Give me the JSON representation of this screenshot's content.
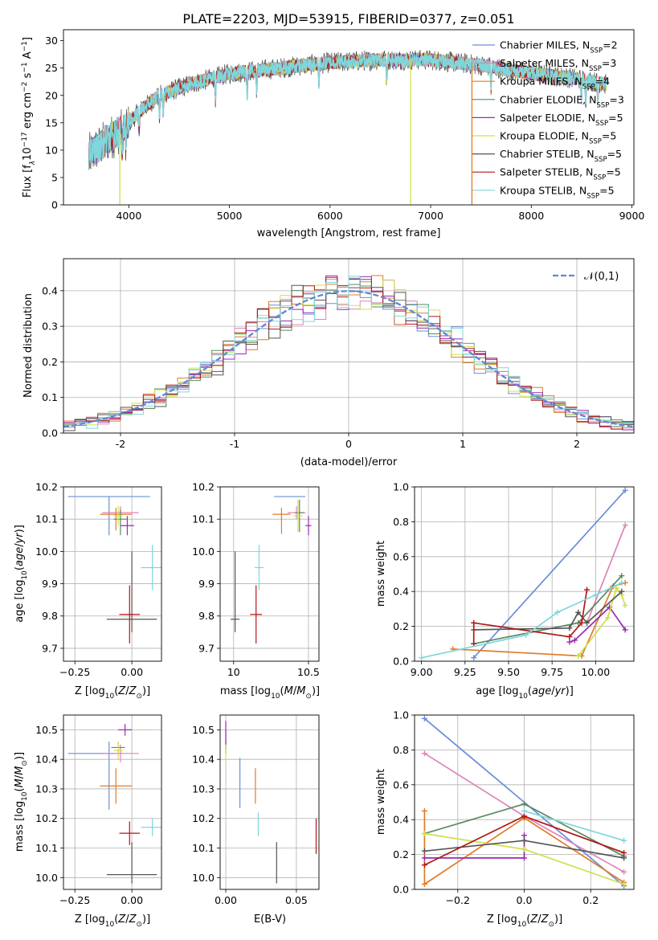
{
  "title": "PLATE=2203, MJD=53915, FIBERID=0377, z=0.051",
  "colors": [
    "#6b8dd6",
    "#e083b8",
    "#e07b2a",
    "#5a8a60",
    "#9a2bb0",
    "#cfe04a",
    "#555555",
    "#b01818",
    "#7fd6dc"
  ],
  "legend": [
    {
      "prefix": "Chabrier MILES, N",
      "sub": "SSP",
      "suffix": "=2"
    },
    {
      "prefix": "Salpeter MILES, N",
      "sub": "SSP",
      "suffix": "=3"
    },
    {
      "prefix": "Kroupa MILES, N",
      "sub": "SSP",
      "suffix": "=4"
    },
    {
      "prefix": "Chabrier ELODIE, N",
      "sub": "SSP",
      "suffix": "=3"
    },
    {
      "prefix": "Salpeter ELODIE, N",
      "sub": "SSP",
      "suffix": "=5"
    },
    {
      "prefix": "Kroupa ELODIE, N",
      "sub": "SSP",
      "suffix": "=5"
    },
    {
      "prefix": "Chabrier STELIB, N",
      "sub": "SSP",
      "suffix": "=5"
    },
    {
      "prefix": "Salpeter STELIB, N",
      "sub": "SSP",
      "suffix": "=5"
    },
    {
      "prefix": "Kroupa STELIB, N",
      "sub": "SSP",
      "suffix": "=5"
    }
  ],
  "chart_data": [
    {
      "type": "line",
      "xlabel": "wavelength [Angstrom, rest frame]",
      "ylabel_parts": [
        "Flux [f",
        "λ",
        "10",
        "−17",
        " erg cm",
        "−2",
        " s",
        "−1",
        " A",
        "−1",
        "]"
      ],
      "xlim": [
        3350,
        9020
      ],
      "ylim": [
        0,
        32
      ],
      "xticks": [
        4000,
        5000,
        6000,
        7000,
        8000,
        9000
      ],
      "yticks": [
        0,
        5,
        10,
        15,
        20,
        25,
        30
      ],
      "continuum": [
        [
          3600,
          9
        ],
        [
          3800,
          12
        ],
        [
          3950,
          14
        ],
        [
          4100,
          17
        ],
        [
          4300,
          20
        ],
        [
          4600,
          22
        ],
        [
          5000,
          24
        ],
        [
          5500,
          25
        ],
        [
          6000,
          26
        ],
        [
          6500,
          26.5
        ],
        [
          7000,
          26.5
        ],
        [
          7500,
          25.5
        ],
        [
          8000,
          24
        ],
        [
          8500,
          23
        ],
        [
          8750,
          22
        ]
      ],
      "wave_range": [
        3600,
        8750
      ],
      "dropouts": [
        {
          "x": 3910,
          "series": 5
        },
        {
          "x": 6800,
          "series": 5
        },
        {
          "x": 7410,
          "series": 2
        }
      ]
    },
    {
      "type": "line",
      "xlabel": "(data-model)/error",
      "ylabel": "Normed distribution",
      "xlim": [
        -2.5,
        2.5
      ],
      "ylim": [
        0,
        0.49
      ],
      "xticks": [
        -2,
        -1,
        0,
        1,
        2
      ],
      "yticks": [
        0.0,
        0.1,
        0.2,
        0.3,
        0.4
      ],
      "bin_width": 0.1,
      "gaussian_label": "𝒩(0,1)",
      "gaussian_color": "#5f86d6"
    },
    {
      "type": "scatter",
      "xlabel": "Z [log10(Z/Z⊙)]",
      "ylabel": "age [log10(age/yr)]",
      "xlim": [
        -0.3,
        0.13
      ],
      "ylim": [
        9.66,
        10.2
      ],
      "xticks": [
        -0.25,
        0.0
      ],
      "xtick_labels": [
        "−0.25",
        "0.00"
      ],
      "yticks": [
        9.7,
        9.8,
        9.9,
        10.0,
        10.1,
        10.2
      ],
      "points": [
        {
          "series": 0,
          "x": -0.1,
          "y": 10.17,
          "xerr": [
            0.18,
            0.18
          ],
          "yerr": [
            0.12,
            0.0
          ]
        },
        {
          "series": 1,
          "x": -0.05,
          "y": 10.12,
          "xerr": [
            0.08,
            0.08
          ],
          "yerr": [
            0.03,
            0.02
          ]
        },
        {
          "series": 2,
          "x": -0.07,
          "y": 10.115,
          "xerr": [
            0.07,
            0.07
          ],
          "yerr": [
            0.05,
            0.02
          ]
        },
        {
          "series": 3,
          "x": -0.05,
          "y": 10.1,
          "xerr": [
            0.03,
            0.03
          ],
          "yerr": [
            0.05,
            0.03
          ]
        },
        {
          "series": 4,
          "x": -0.02,
          "y": 10.08,
          "xerr": [
            0.03,
            0.03
          ],
          "yerr": [
            0.03,
            0.03
          ]
        },
        {
          "series": 5,
          "x": -0.06,
          "y": 10.11,
          "xerr": [
            0.02,
            0.02
          ],
          "yerr": [
            0.03,
            0.03
          ]
        },
        {
          "series": 6,
          "x": 0.0,
          "y": 9.79,
          "xerr": [
            0.11,
            0.11
          ],
          "yerr": [
            0.04,
            0.21
          ]
        },
        {
          "series": 7,
          "x": -0.01,
          "y": 9.805,
          "xerr": [
            0.045,
            0.045
          ],
          "yerr": [
            0.09,
            0.09
          ]
        },
        {
          "series": 8,
          "x": 0.09,
          "y": 9.95,
          "xerr": [
            0.05,
            0.05
          ],
          "yerr": [
            0.07,
            0.07
          ]
        }
      ]
    },
    {
      "type": "scatter",
      "xlabel": "mass [log10(M/M⊙)]",
      "ylabel": "",
      "xlim": [
        9.91,
        10.57
      ],
      "ylim": [
        9.66,
        10.2
      ],
      "xticks": [
        10.0,
        10.5
      ],
      "yticks": [
        9.7,
        9.8,
        9.9,
        10.0,
        10.1,
        10.2
      ],
      "points": [
        {
          "series": 0,
          "x": 10.42,
          "y": 10.17,
          "xerr": [
            0.15,
            0.06
          ],
          "yerr": [
            0.0,
            0.0
          ]
        },
        {
          "series": 1,
          "x": 10.42,
          "y": 10.12,
          "xerr": [
            0.06,
            0.06
          ],
          "yerr": [
            0.02,
            0.02
          ]
        },
        {
          "series": 2,
          "x": 10.32,
          "y": 10.115,
          "xerr": [
            0.06,
            0.06
          ],
          "yerr": [
            0.06,
            0.02
          ]
        },
        {
          "series": 3,
          "x": 10.44,
          "y": 10.12,
          "xerr": [
            0.03,
            0.03
          ],
          "yerr": [
            0.06,
            0.04
          ]
        },
        {
          "series": 4,
          "x": 10.5,
          "y": 10.08,
          "xerr": [
            0.02,
            0.02
          ],
          "yerr": [
            0.03,
            0.03
          ]
        },
        {
          "series": 5,
          "x": 10.43,
          "y": 10.11,
          "xerr": [
            0.03,
            0.03
          ],
          "yerr": [
            0.05,
            0.05
          ]
        },
        {
          "series": 6,
          "x": 10.01,
          "y": 9.79,
          "xerr": [
            0.03,
            0.03
          ],
          "yerr": [
            0.04,
            0.21
          ]
        },
        {
          "series": 7,
          "x": 10.15,
          "y": 9.805,
          "xerr": [
            0.04,
            0.04
          ],
          "yerr": [
            0.09,
            0.09
          ]
        },
        {
          "series": 8,
          "x": 10.17,
          "y": 9.95,
          "xerr": [
            0.03,
            0.03
          ],
          "yerr": [
            0.07,
            0.07
          ]
        }
      ]
    },
    {
      "type": "line",
      "xlabel": "age [log10(age/yr)]",
      "ylabel": "mass weight",
      "xlim": [
        8.96,
        10.22
      ],
      "ylim": [
        0,
        1.0
      ],
      "xticks": [
        9.0,
        9.25,
        9.5,
        9.75,
        10.0
      ],
      "xtick_labels": [
        "9.00",
        "9.25",
        "9.50",
        "9.75",
        "10.00"
      ],
      "yticks": [
        0.0,
        0.2,
        0.4,
        0.6,
        0.8,
        1.0
      ],
      "series": [
        {
          "color": 0,
          "x": [
            9.3,
            10.17
          ],
          "y": [
            0.02,
            0.98
          ]
        },
        {
          "color": 1,
          "x": [
            9.95,
            10.17
          ],
          "y": [
            0.22,
            0.78
          ]
        },
        {
          "color": 2,
          "x": [
            9.18,
            9.92,
            10.1,
            10.17
          ],
          "y": [
            0.07,
            0.03,
            0.43,
            0.45
          ]
        },
        {
          "color": 3,
          "x": [
            9.3,
            9.9,
            10.15
          ],
          "y": [
            0.1,
            0.22,
            0.49
          ]
        },
        {
          "color": 4,
          "x": [
            9.85,
            9.88,
            10.08,
            10.17
          ],
          "y": [
            0.11,
            0.12,
            0.31,
            0.18
          ]
        },
        {
          "color": 5,
          "x": [
            9.9,
            10.07,
            10.12,
            10.15,
            10.17
          ],
          "y": [
            0.03,
            0.25,
            0.42,
            0.38,
            0.32
          ]
        },
        {
          "color": 6,
          "x": [
            9.3,
            9.85,
            9.9,
            9.95,
            10.15
          ],
          "y": [
            0.18,
            0.19,
            0.28,
            0.22,
            0.4
          ]
        },
        {
          "color": 7,
          "x": [
            9.3,
            9.3,
            9.85,
            9.92,
            9.95
          ],
          "y": [
            0.1,
            0.22,
            0.14,
            0.22,
            0.41
          ]
        },
        {
          "color": 8,
          "x": [
            9.0,
            9.6,
            9.78,
            10.0,
            10.15
          ],
          "y": [
            0.02,
            0.15,
            0.28,
            0.38,
            0.45
          ]
        }
      ]
    },
    {
      "type": "scatter",
      "xlabel": "Z [log10(Z/Z⊙)]",
      "ylabel": "mass [log10(M/M⊙)]",
      "xlim": [
        -0.3,
        0.13
      ],
      "ylim": [
        9.96,
        10.55
      ],
      "xticks": [
        -0.25,
        0.0
      ],
      "xtick_labels": [
        "−0.25",
        "0.00"
      ],
      "yticks": [
        10.0,
        10.1,
        10.2,
        10.3,
        10.4,
        10.5
      ],
      "points": [
        {
          "series": 0,
          "x": -0.1,
          "y": 10.42,
          "xerr": [
            0.18,
            0.06
          ],
          "yerr": [
            0.19,
            0.04
          ]
        },
        {
          "series": 1,
          "x": -0.05,
          "y": 10.42,
          "xerr": [
            0.08,
            0.08
          ],
          "yerr": [
            0.03,
            0.03
          ]
        },
        {
          "series": 2,
          "x": -0.07,
          "y": 10.31,
          "xerr": [
            0.07,
            0.07
          ],
          "yerr": [
            0.06,
            0.06
          ]
        },
        {
          "series": 3,
          "x": -0.06,
          "y": 10.44,
          "xerr": [
            0.03,
            0.03
          ],
          "yerr": [
            0.02,
            0.02
          ]
        },
        {
          "series": 4,
          "x": -0.03,
          "y": 10.5,
          "xerr": [
            0.03,
            0.03
          ],
          "yerr": [
            0.02,
            0.02
          ]
        },
        {
          "series": 5,
          "x": -0.06,
          "y": 10.43,
          "xerr": [
            0.02,
            0.02
          ],
          "yerr": [
            0.03,
            0.03
          ]
        },
        {
          "series": 6,
          "x": 0.0,
          "y": 10.01,
          "xerr": [
            0.11,
            0.11
          ],
          "yerr": [
            0.03,
            0.11
          ]
        },
        {
          "series": 7,
          "x": -0.01,
          "y": 10.15,
          "xerr": [
            0.045,
            0.045
          ],
          "yerr": [
            0.04,
            0.04
          ]
        },
        {
          "series": 8,
          "x": 0.09,
          "y": 10.17,
          "xerr": [
            0.05,
            0.05
          ],
          "yerr": [
            0.03,
            0.03
          ]
        }
      ]
    },
    {
      "type": "scatter",
      "xlabel": "E(B-V)",
      "ylabel": "",
      "xlim": [
        -0.004,
        0.066
      ],
      "ylim": [
        9.96,
        10.55
      ],
      "xticks": [
        0.0,
        0.05
      ],
      "xtick_labels": [
        "0.00",
        "0.05"
      ],
      "yticks": [
        10.0,
        10.1,
        10.2,
        10.3,
        10.4,
        10.5
      ],
      "points": [
        {
          "series": 0,
          "x": 0.01,
          "y": 10.32,
          "xerr": [
            0,
            0
          ],
          "yerr": [
            0.085,
            0.085
          ]
        },
        {
          "series": 1,
          "x": 0.0,
          "y": 10.46,
          "xerr": [
            0,
            0
          ],
          "yerr": [
            0.04,
            0.04
          ]
        },
        {
          "series": 2,
          "x": 0.021,
          "y": 10.31,
          "xerr": [
            0,
            0
          ],
          "yerr": [
            0.06,
            0.06
          ]
        },
        {
          "series": 3,
          "x": 0.0,
          "y": 10.44,
          "xerr": [
            0,
            0
          ],
          "yerr": [
            0.02,
            0.02
          ]
        },
        {
          "series": 4,
          "x": 0.0,
          "y": 10.49,
          "xerr": [
            0,
            0
          ],
          "yerr": [
            0.04,
            0.04
          ]
        },
        {
          "series": 5,
          "x": 0.0,
          "y": 10.42,
          "xerr": [
            0,
            0
          ],
          "yerr": [
            0.03,
            0.03
          ]
        },
        {
          "series": 6,
          "x": 0.036,
          "y": 10.05,
          "xerr": [
            0,
            0
          ],
          "yerr": [
            0.07,
            0.07
          ]
        },
        {
          "series": 7,
          "x": 0.064,
          "y": 10.14,
          "xerr": [
            0,
            0
          ],
          "yerr": [
            0.06,
            0.06
          ]
        },
        {
          "series": 8,
          "x": 0.023,
          "y": 10.18,
          "xerr": [
            0,
            0
          ],
          "yerr": [
            0.04,
            0.04
          ]
        }
      ]
    },
    {
      "type": "line",
      "xlabel": "Z [log10(Z/Z⊙)]",
      "ylabel": "mass weight",
      "xlim": [
        -0.33,
        0.33
      ],
      "ylim": [
        0,
        1.0
      ],
      "xticks": [
        -0.2,
        0.0,
        0.2
      ],
      "xtick_labels": [
        "−0.2",
        "0.0",
        "0.2"
      ],
      "yticks": [
        0.0,
        0.2,
        0.4,
        0.6,
        0.8,
        1.0
      ],
      "series": [
        {
          "color": 0,
          "x": [
            -0.3,
            0.3
          ],
          "y": [
            0.98,
            0.02
          ]
        },
        {
          "color": 1,
          "x": [
            -0.3,
            0.0,
            0.3
          ],
          "y": [
            0.78,
            0.42,
            0.1
          ]
        },
        {
          "color": 2,
          "x": [
            -0.3,
            -0.3,
            0.0,
            0.3
          ],
          "y": [
            0.45,
            0.03,
            0.41,
            0.04
          ]
        },
        {
          "color": 3,
          "x": [
            -0.3,
            0.0,
            0.3
          ],
          "y": [
            0.32,
            0.49,
            0.19
          ]
        },
        {
          "color": 4,
          "x": [
            -0.3,
            0.0,
            0.0
          ],
          "y": [
            0.18,
            0.18,
            0.31
          ]
        },
        {
          "color": 5,
          "x": [
            -0.3,
            0.0,
            0.3
          ],
          "y": [
            0.32,
            0.23,
            0.03
          ]
        },
        {
          "color": 6,
          "x": [
            -0.3,
            0.0,
            0.3
          ],
          "y": [
            0.22,
            0.28,
            0.18
          ]
        },
        {
          "color": 7,
          "x": [
            -0.3,
            0.0,
            0.3
          ],
          "y": [
            0.14,
            0.42,
            0.21
          ]
        },
        {
          "color": 8,
          "x": [
            0.0,
            0.3
          ],
          "y": [
            0.45,
            0.28
          ]
        }
      ]
    }
  ]
}
